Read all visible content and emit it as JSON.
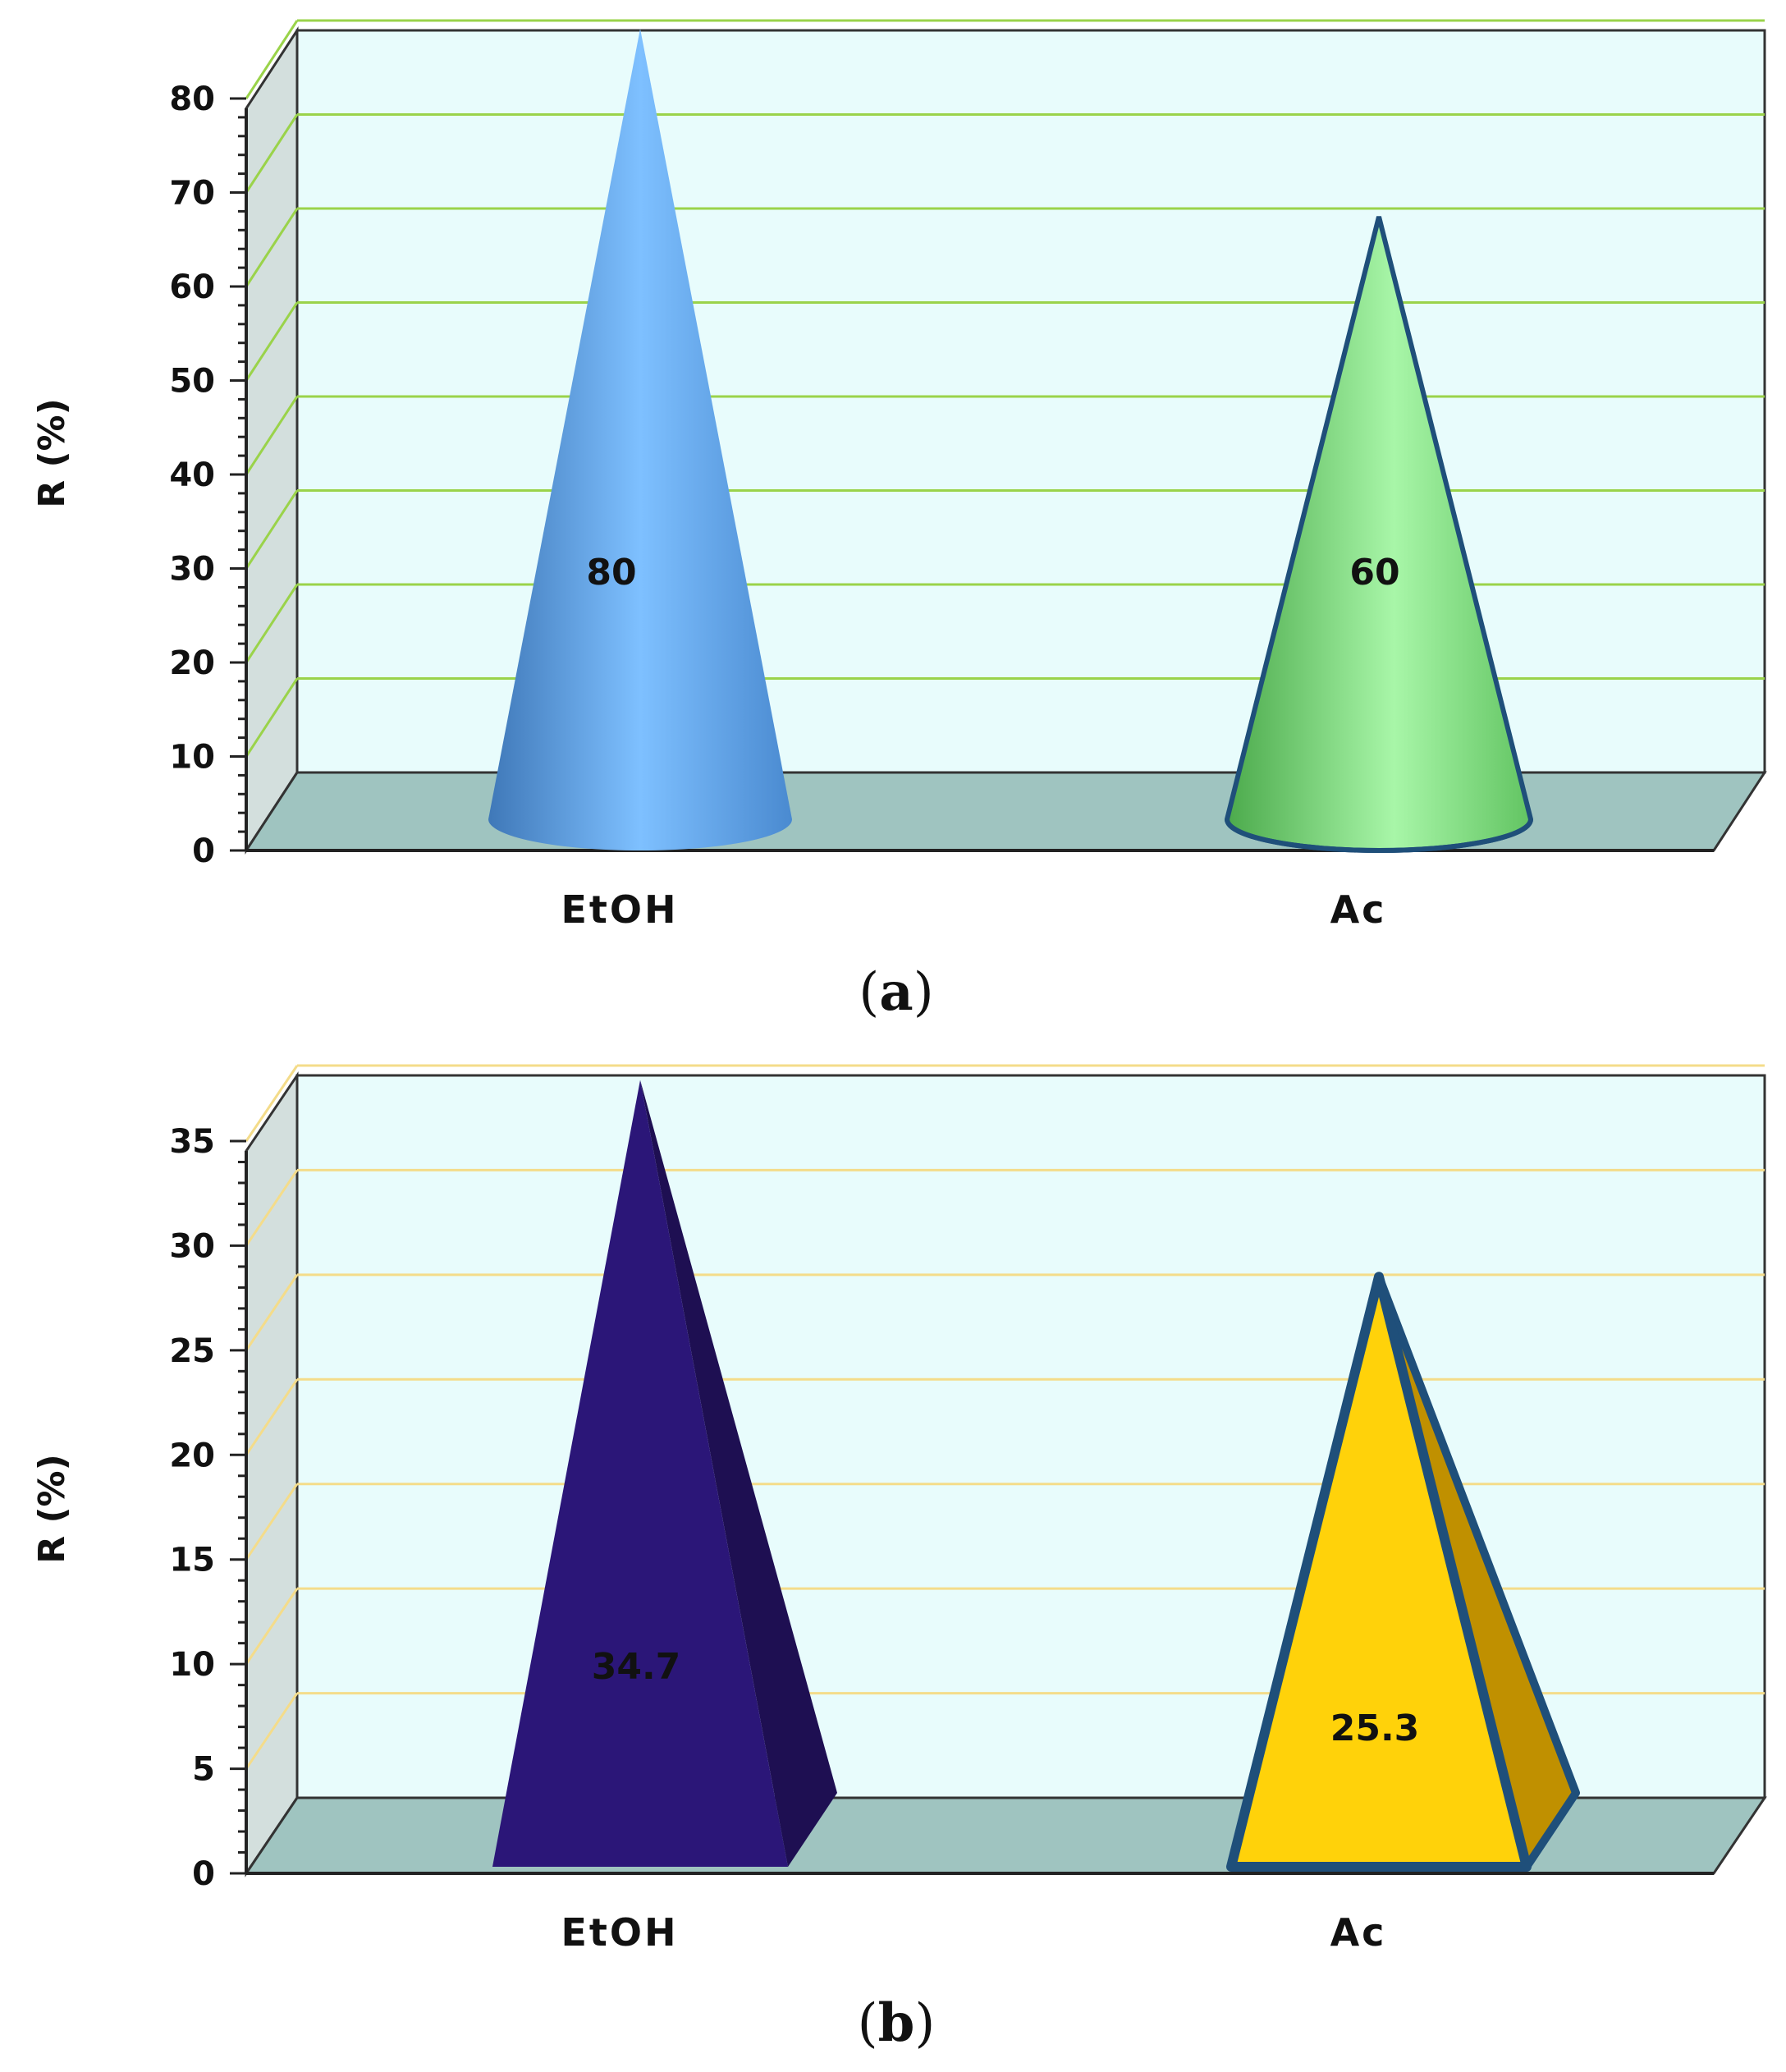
{
  "chart_data": [
    {
      "type": "bar",
      "shape": "cone",
      "panel_label": "a",
      "categories": [
        "EtOH",
        "Ac"
      ],
      "values": [
        80,
        60
      ],
      "data_labels": [
        "80",
        "60"
      ],
      "ylabel": "R (%)",
      "ylim": [
        0,
        80
      ],
      "yticks": [
        0,
        10,
        20,
        30,
        40,
        50,
        60,
        70,
        80
      ],
      "yticks_labels": [
        "0",
        "10",
        "20",
        "30",
        "40",
        "50",
        "60",
        "70",
        "80"
      ],
      "grid": true,
      "colors": {
        "EtOH": "#5fa8e8",
        "Ac": "#8ee08e",
        "wall": "#e8fcfc",
        "floor": "#9fc4c0",
        "gridline": "#9ad34a"
      }
    },
    {
      "type": "bar",
      "shape": "pyramid",
      "panel_label": "b",
      "categories": [
        "EtOH",
        "Ac"
      ],
      "values": [
        34.7,
        25.3
      ],
      "data_labels": [
        "34.7",
        "25.3"
      ],
      "ylabel": "R (%)",
      "ylim": [
        0,
        35
      ],
      "yticks": [
        0,
        5,
        10,
        15,
        20,
        25,
        30,
        35
      ],
      "yticks_labels": [
        "0",
        "5",
        "10",
        "15",
        "20",
        "25",
        "30",
        "35"
      ],
      "grid": true,
      "colors": {
        "EtOH": "#2b1678",
        "Ac": "#ffd20a",
        "wall": "#e8fcfc",
        "floor": "#9fc4c0",
        "gridline": "#f4dc8a"
      }
    }
  ]
}
